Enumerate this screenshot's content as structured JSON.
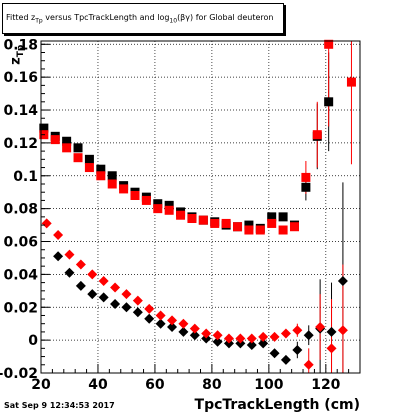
{
  "header": {
    "title_prefix": "Fitted  z",
    "title_sub1": "Tp",
    "title_mid": " versus  TpcTrackLength and log",
    "title_sub2": "10",
    "title_suffix": "(βγ) for Global deuteron"
  },
  "axis": {
    "ylabel_main": "z",
    "ylabel_sub": "Tp",
    "xlabel": "TpcTrackLength (cm)"
  },
  "footer": {
    "datestamp": "Sat Sep  9 12:34:53 2017"
  },
  "chart_data": {
    "type": "scatter",
    "title": "Fitted z_Tp versus TpcTrackLength and log_10(βγ) for Global deuteron",
    "xlabel": "TpcTrackLength (cm)",
    "ylabel": "z_Tp",
    "xlim": [
      20,
      132
    ],
    "ylim": [
      -0.02,
      0.182
    ],
    "x_ticks": [
      20,
      40,
      60,
      80,
      100,
      120
    ],
    "y_ticks": [
      -0.02,
      0,
      0.02,
      0.04,
      0.06,
      0.08,
      0.1,
      0.12,
      0.14,
      0.16,
      0.18
    ],
    "grid": true,
    "series": [
      {
        "marker": "square",
        "color": "#000000",
        "points": [
          {
            "x": 21,
            "y": 0.129
          },
          {
            "x": 25,
            "y": 0.124
          },
          {
            "x": 29,
            "y": 0.121
          },
          {
            "x": 33,
            "y": 0.117
          },
          {
            "x": 37,
            "y": 0.11
          },
          {
            "x": 41,
            "y": 0.104
          },
          {
            "x": 45,
            "y": 0.1
          },
          {
            "x": 49,
            "y": 0.094
          },
          {
            "x": 53,
            "y": 0.09
          },
          {
            "x": 57,
            "y": 0.087
          },
          {
            "x": 61,
            "y": 0.083
          },
          {
            "x": 65,
            "y": 0.082
          },
          {
            "x": 69,
            "y": 0.078
          },
          {
            "x": 73,
            "y": 0.075
          },
          {
            "x": 77,
            "y": 0.073
          },
          {
            "x": 81,
            "y": 0.072
          },
          {
            "x": 85,
            "y": 0.07
          },
          {
            "x": 89,
            "y": 0.069
          },
          {
            "x": 93,
            "y": 0.07
          },
          {
            "x": 97,
            "y": 0.068
          },
          {
            "x": 101,
            "y": 0.075
          },
          {
            "x": 105,
            "y": 0.075
          },
          {
            "x": 109,
            "y": 0.07
          },
          {
            "x": 113,
            "y": 0.093,
            "err": 0.008
          },
          {
            "x": 117,
            "y": 0.124,
            "err": 0.02
          },
          {
            "x": 121,
            "y": 0.145,
            "err": 0.03
          }
        ]
      },
      {
        "marker": "square",
        "color": "#ff0000",
        "points": [
          {
            "x": 21,
            "y": 0.125
          },
          {
            "x": 25,
            "y": 0.122
          },
          {
            "x": 29,
            "y": 0.117
          },
          {
            "x": 33,
            "y": 0.111
          },
          {
            "x": 37,
            "y": 0.105
          },
          {
            "x": 41,
            "y": 0.1
          },
          {
            "x": 45,
            "y": 0.095
          },
          {
            "x": 49,
            "y": 0.092
          },
          {
            "x": 53,
            "y": 0.088
          },
          {
            "x": 57,
            "y": 0.085
          },
          {
            "x": 61,
            "y": 0.08
          },
          {
            "x": 65,
            "y": 0.079
          },
          {
            "x": 69,
            "y": 0.076
          },
          {
            "x": 73,
            "y": 0.074
          },
          {
            "x": 77,
            "y": 0.073
          },
          {
            "x": 81,
            "y": 0.071
          },
          {
            "x": 85,
            "y": 0.071
          },
          {
            "x": 89,
            "y": 0.069
          },
          {
            "x": 93,
            "y": 0.067
          },
          {
            "x": 97,
            "y": 0.067
          },
          {
            "x": 101,
            "y": 0.071
          },
          {
            "x": 105,
            "y": 0.067
          },
          {
            "x": 109,
            "y": 0.069
          },
          {
            "x": 113,
            "y": 0.099,
            "err": 0.01
          },
          {
            "x": 117,
            "y": 0.125,
            "err": 0.02
          },
          {
            "x": 121,
            "y": 0.18,
            "err": 0.05
          },
          {
            "x": 129,
            "y": 0.157,
            "err": 0.05
          }
        ]
      },
      {
        "marker": "diamond",
        "color": "#000000",
        "points": [
          {
            "x": 26,
            "y": 0.051
          },
          {
            "x": 30,
            "y": 0.041
          },
          {
            "x": 34,
            "y": 0.033
          },
          {
            "x": 38,
            "y": 0.028
          },
          {
            "x": 42,
            "y": 0.026
          },
          {
            "x": 46,
            "y": 0.022
          },
          {
            "x": 50,
            "y": 0.02
          },
          {
            "x": 54,
            "y": 0.017
          },
          {
            "x": 58,
            "y": 0.013
          },
          {
            "x": 62,
            "y": 0.01
          },
          {
            "x": 66,
            "y": 0.008
          },
          {
            "x": 70,
            "y": 0.005
          },
          {
            "x": 74,
            "y": 0.003
          },
          {
            "x": 78,
            "y": 0.001
          },
          {
            "x": 82,
            "y": -0.001
          },
          {
            "x": 86,
            "y": -0.002
          },
          {
            "x": 90,
            "y": -0.002
          },
          {
            "x": 94,
            "y": -0.003
          },
          {
            "x": 98,
            "y": -0.002
          },
          {
            "x": 102,
            "y": -0.008
          },
          {
            "x": 106,
            "y": -0.012
          },
          {
            "x": 110,
            "y": -0.006,
            "err": 0.005
          },
          {
            "x": 114,
            "y": 0.003,
            "err": 0.006
          },
          {
            "x": 118,
            "y": 0.007,
            "err": 0.03
          },
          {
            "x": 122,
            "y": 0.005,
            "err": 0.03
          },
          {
            "x": 126,
            "y": 0.036,
            "err": 0.06
          }
        ]
      },
      {
        "marker": "diamond",
        "color": "#ff0000",
        "points": [
          {
            "x": 22,
            "y": 0.071
          },
          {
            "x": 26,
            "y": 0.064
          },
          {
            "x": 30,
            "y": 0.052
          },
          {
            "x": 34,
            "y": 0.046
          },
          {
            "x": 38,
            "y": 0.04
          },
          {
            "x": 42,
            "y": 0.036
          },
          {
            "x": 46,
            "y": 0.032
          },
          {
            "x": 50,
            "y": 0.028
          },
          {
            "x": 54,
            "y": 0.024
          },
          {
            "x": 58,
            "y": 0.019
          },
          {
            "x": 62,
            "y": 0.015
          },
          {
            "x": 66,
            "y": 0.012
          },
          {
            "x": 70,
            "y": 0.01
          },
          {
            "x": 74,
            "y": 0.007
          },
          {
            "x": 78,
            "y": 0.004
          },
          {
            "x": 82,
            "y": 0.003
          },
          {
            "x": 86,
            "y": 0.001
          },
          {
            "x": 90,
            "y": 0.001
          },
          {
            "x": 94,
            "y": 0.001
          },
          {
            "x": 98,
            "y": 0.002
          },
          {
            "x": 102,
            "y": 0.002
          },
          {
            "x": 106,
            "y": 0.004
          },
          {
            "x": 110,
            "y": 0.006,
            "err": 0.004
          },
          {
            "x": 114,
            "y": -0.015,
            "err": 0.01
          },
          {
            "x": 118,
            "y": 0.008,
            "err": 0.02
          },
          {
            "x": 122,
            "y": -0.005,
            "err": 0.03
          },
          {
            "x": 126,
            "y": 0.006,
            "err": 0.04
          }
        ]
      }
    ]
  }
}
